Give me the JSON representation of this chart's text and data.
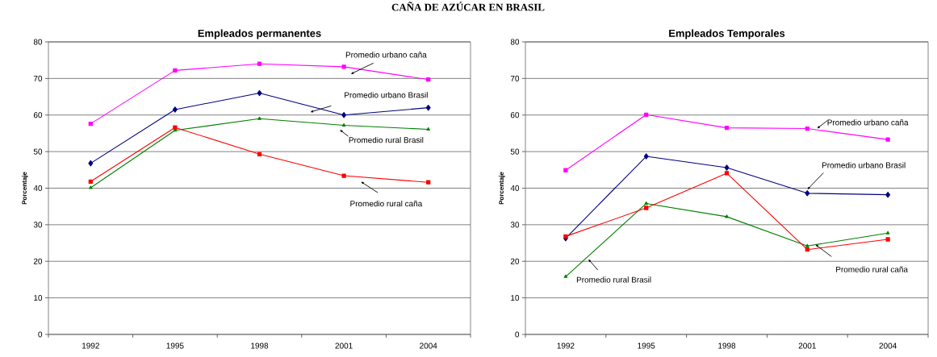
{
  "chart_data": [
    {
      "type": "line",
      "title": "Empleados permanentes",
      "ylabel": "Porcentaje",
      "annotations": [
        "CAÑA DE AZÚCAR EN BRASIL"
      ],
      "categories": [
        "1992",
        "1995",
        "1998",
        "2001",
        "2004"
      ],
      "ylim": [
        0,
        80
      ],
      "yticks": [
        0,
        10,
        20,
        30,
        40,
        50,
        60,
        70,
        80
      ],
      "grid": "y",
      "legend": false,
      "series": [
        {
          "name": "Promedio urbano caña",
          "color": "#ff00ff",
          "marker": "square",
          "values": [
            57.6,
            72.2,
            74,
            73.2,
            69.7
          ]
        },
        {
          "name": "Promedio urbano Brasil",
          "color": "#000080",
          "marker": "diamond",
          "values": [
            46.8,
            61.5,
            66,
            60,
            62
          ]
        },
        {
          "name": "Promedio rural Brasil",
          "color": "#008000",
          "marker": "triangle",
          "values": [
            40.1,
            55.8,
            59,
            57.2,
            56.1
          ]
        },
        {
          "name": "Promedio rural caña",
          "color": "#ff0000",
          "marker": "square",
          "values": [
            41.8,
            56.6,
            49.3,
            43.4,
            41.6
          ]
        }
      ]
    },
    {
      "type": "line",
      "title": "Empleados Temporales",
      "ylabel": "Porcentaje",
      "categories": [
        "1992",
        "1995",
        "1998",
        "2001",
        "2004"
      ],
      "ylim": [
        0,
        80
      ],
      "yticks": [
        0,
        10,
        20,
        30,
        40,
        50,
        60,
        70,
        80
      ],
      "grid": "y",
      "legend": false,
      "series": [
        {
          "name": "Promedio urbano caña",
          "color": "#ff00ff",
          "marker": "square",
          "values": [
            44.9,
            60.1,
            56.5,
            56.3,
            53.3
          ]
        },
        {
          "name": "Promedio urbano Brasil",
          "color": "#000080",
          "marker": "diamond",
          "values": [
            26.3,
            48.7,
            45.6,
            38.6,
            38.2
          ]
        },
        {
          "name": "Promedio rural Brasil",
          "color": "#008000",
          "marker": "triangle",
          "values": [
            15.8,
            35.8,
            32.2,
            24.2,
            27.7
          ]
        },
        {
          "name": "Promedio rural caña",
          "color": "#ff0000",
          "marker": "square",
          "values": [
            26.8,
            34.6,
            44.1,
            23.2,
            26.0
          ]
        }
      ]
    }
  ]
}
